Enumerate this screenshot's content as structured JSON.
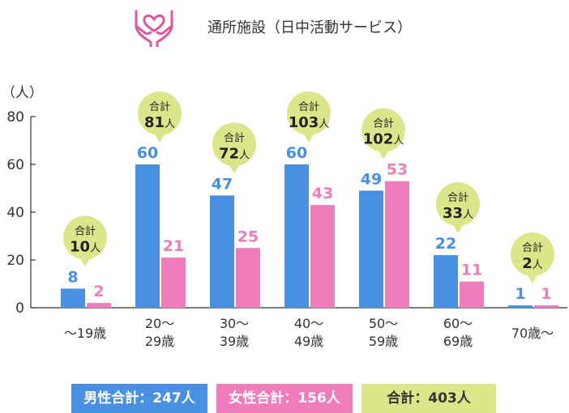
{
  "header": {
    "title": "通所施設（日中活動サービス）",
    "icon": "heart-in-hands-icon",
    "icon_color": "#e0559b"
  },
  "colors": {
    "male": "#4a90e2",
    "female": "#ef7dbe",
    "total_bubble": "#dde58a",
    "axis": "#333333"
  },
  "chart_data": {
    "type": "bar",
    "ylabel": "（人）",
    "ylim": [
      0,
      80
    ],
    "yticks": [
      0,
      20,
      40,
      60,
      80
    ],
    "categories": [
      [
        "〜19歳"
      ],
      [
        "20〜",
        "29歳"
      ],
      [
        "30〜",
        "39歳"
      ],
      [
        "40〜",
        "49歳"
      ],
      [
        "50〜",
        "59歳"
      ],
      [
        "60〜",
        "69歳"
      ],
      [
        "70歳〜"
      ]
    ],
    "series": [
      {
        "key": "male",
        "values": [
          8,
          60,
          47,
          60,
          49,
          22,
          1
        ]
      },
      {
        "key": "female",
        "values": [
          2,
          21,
          25,
          43,
          53,
          11,
          1
        ]
      }
    ],
    "totals": {
      "prefix": "合計",
      "unit": "人",
      "values": [
        10,
        81,
        72,
        103,
        102,
        33,
        2
      ]
    }
  },
  "legend": {
    "male": "男性合計：247人",
    "female": "女性合計：156人",
    "total": "合計：403人"
  }
}
